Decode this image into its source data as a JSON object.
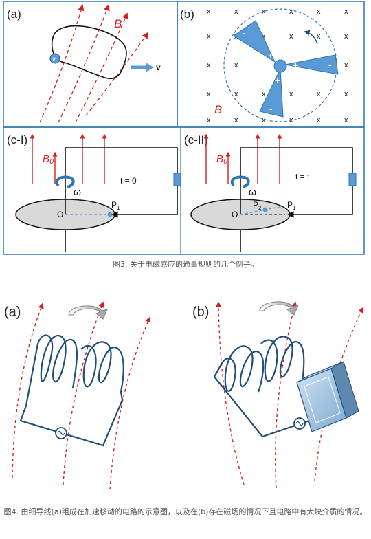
{
  "figure3": {
    "panel_a": {
      "label": "(a)",
      "field": "B",
      "velocity": "v",
      "charge": "v"
    },
    "panel_b": {
      "label": "(b)",
      "field": "B",
      "cross": "x",
      "plus": "+",
      "minus": "-"
    },
    "panel_c1": {
      "label": "(c-I)",
      "field": "B₀",
      "omega": "ω",
      "time": "t = 0",
      "origin": "O",
      "point1": "P",
      "sub1": "1"
    },
    "panel_c2": {
      "label": "(c-II)",
      "field": "B₀",
      "omega": "ω",
      "time": "t = t",
      "origin": "O",
      "point1": "P",
      "sub1": "1",
      "point2": "P",
      "sub2": "2"
    },
    "caption": "图3. 关于电磁感应的通量规则的几个例子。"
  },
  "figure4": {
    "panel_a": {
      "label": "(a)"
    },
    "panel_b": {
      "label": "(b)"
    },
    "caption": "图4. 由细导线(a)组成在加速移动的电路的示意图，以及在(b)存在磁场的情况下且电路中有大块介质的情况。"
  },
  "colors": {
    "frame": "#2e75b6",
    "field": "#d42020",
    "wire": "#1f4e79",
    "blade": "#5b9bd5"
  }
}
